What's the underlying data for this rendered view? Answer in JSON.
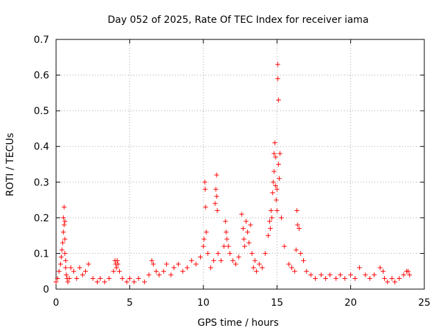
{
  "chart_data": {
    "type": "scatter",
    "title": "Day 052 of 2025, Rate Of TEC Index for receiver iama",
    "xlabel": "GPS time / hours",
    "ylabel": "ROTI / TECUs",
    "xlim": [
      0,
      25
    ],
    "ylim": [
      0,
      0.7
    ],
    "x_ticks": [
      0,
      5,
      10,
      15,
      20,
      25
    ],
    "y_ticks": [
      0,
      0.1,
      0.2,
      0.3,
      0.4,
      0.5,
      0.6,
      0.7
    ],
    "x_tick_labels": [
      "0",
      "5",
      "10",
      "15",
      "20",
      "25"
    ],
    "y_tick_labels": [
      "0",
      "0.1",
      "0.2",
      "0.3",
      "0.4",
      "0.5",
      "0.6",
      "0.7"
    ],
    "grid": true,
    "marker": "+",
    "color": "#ff0000",
    "series": [
      {
        "x": [
          0.0,
          0.1,
          0.2,
          0.3,
          0.35,
          0.4,
          0.45,
          0.5,
          0.5,
          0.55,
          0.55,
          0.6,
          0.6,
          0.6,
          0.65,
          0.65,
          0.7,
          0.75,
          0.8,
          0.9,
          1.0,
          1.2,
          1.4,
          1.6,
          1.8,
          2.0,
          2.2,
          2.5,
          2.8,
          3.0,
          3.3,
          3.6,
          3.9,
          4.0,
          4.05,
          4.1,
          4.15,
          4.2,
          4.3,
          4.5,
          4.8,
          5.0,
          5.3,
          5.6,
          6.0,
          6.3,
          6.5,
          6.6,
          6.8,
          7.0,
          7.3,
          7.5,
          7.8,
          8.0,
          8.3,
          8.6,
          8.9,
          9.2,
          9.5,
          9.8,
          10.0,
          10.05,
          10.1,
          10.12,
          10.15,
          10.2,
          10.3,
          10.5,
          10.7,
          10.8,
          10.85,
          10.9,
          10.9,
          10.95,
          11.0,
          11.2,
          11.4,
          11.5,
          11.55,
          11.6,
          11.7,
          11.8,
          12.0,
          12.2,
          12.4,
          12.6,
          12.7,
          12.75,
          12.8,
          12.9,
          13.0,
          13.1,
          13.2,
          13.3,
          13.4,
          13.5,
          13.6,
          13.8,
          14.0,
          14.2,
          14.4,
          14.5,
          14.55,
          14.6,
          14.65,
          14.7,
          14.75,
          14.8,
          14.8,
          14.85,
          14.9,
          14.9,
          14.95,
          15.0,
          15.0,
          15.05,
          15.05,
          15.1,
          15.1,
          15.15,
          15.2,
          15.3,
          15.5,
          15.8,
          16.0,
          16.2,
          16.3,
          16.35,
          16.4,
          16.5,
          16.6,
          16.8,
          17.0,
          17.3,
          17.6,
          18.0,
          18.3,
          18.6,
          19.0,
          19.3,
          19.6,
          20.0,
          20.3,
          20.6,
          21.0,
          21.3,
          21.6,
          22.0,
          22.2,
          22.3,
          22.5,
          22.8,
          23.0,
          23.3,
          23.6,
          23.8,
          23.9,
          24.0
        ],
        "y": [
          0.02,
          0.03,
          0.05,
          0.07,
          0.09,
          0.11,
          0.13,
          0.16,
          0.2,
          0.23,
          0.18,
          0.14,
          0.19,
          0.1,
          0.08,
          0.06,
          0.04,
          0.03,
          0.02,
          0.03,
          0.06,
          0.05,
          0.03,
          0.06,
          0.04,
          0.05,
          0.07,
          0.03,
          0.02,
          0.03,
          0.02,
          0.03,
          0.05,
          0.08,
          0.07,
          0.06,
          0.08,
          0.07,
          0.05,
          0.03,
          0.02,
          0.03,
          0.02,
          0.03,
          0.02,
          0.04,
          0.08,
          0.07,
          0.05,
          0.04,
          0.05,
          0.07,
          0.04,
          0.06,
          0.07,
          0.05,
          0.06,
          0.08,
          0.07,
          0.09,
          0.12,
          0.14,
          0.3,
          0.28,
          0.23,
          0.16,
          0.1,
          0.06,
          0.08,
          0.24,
          0.28,
          0.32,
          0.26,
          0.22,
          0.1,
          0.08,
          0.12,
          0.19,
          0.16,
          0.14,
          0.12,
          0.1,
          0.08,
          0.07,
          0.09,
          0.21,
          0.17,
          0.14,
          0.12,
          0.19,
          0.16,
          0.13,
          0.18,
          0.1,
          0.06,
          0.08,
          0.05,
          0.07,
          0.06,
          0.1,
          0.15,
          0.19,
          0.17,
          0.22,
          0.2,
          0.27,
          0.3,
          0.33,
          0.38,
          0.41,
          0.37,
          0.29,
          0.25,
          0.28,
          0.22,
          0.59,
          0.63,
          0.53,
          0.35,
          0.31,
          0.38,
          0.2,
          0.12,
          0.07,
          0.06,
          0.05,
          0.11,
          0.22,
          0.18,
          0.17,
          0.1,
          0.08,
          0.05,
          0.04,
          0.03,
          0.04,
          0.03,
          0.04,
          0.03,
          0.04,
          0.03,
          0.04,
          0.03,
          0.06,
          0.04,
          0.03,
          0.04,
          0.06,
          0.05,
          0.03,
          0.02,
          0.03,
          0.02,
          0.03,
          0.04,
          0.05,
          0.05,
          0.04
        ]
      }
    ]
  }
}
